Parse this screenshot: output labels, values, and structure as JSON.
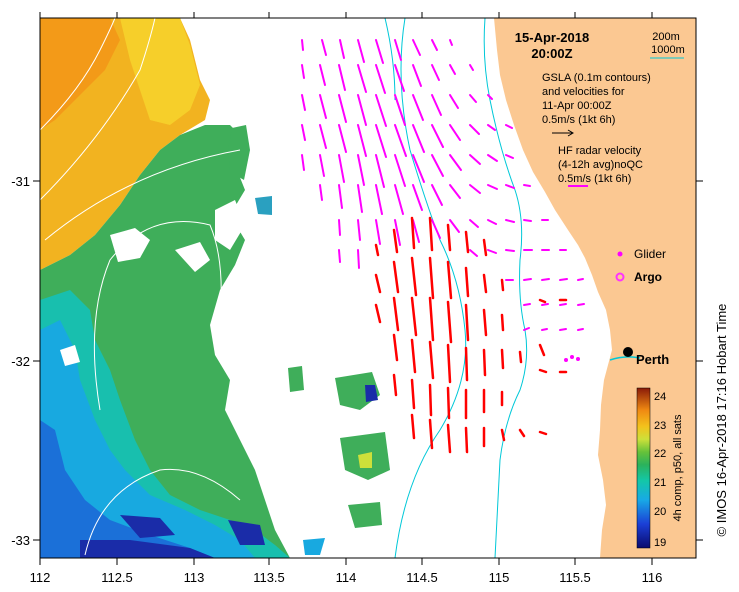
{
  "map": {
    "date_line": "15-Apr-2018",
    "time_line": "20:00Z",
    "depth_legend": [
      "200m",
      "1000m"
    ],
    "gsla_lines": [
      "GSLA (0.1m contours)",
      "and velocities for",
      "11-Apr 00:00Z",
      "0.5m/s (1kt 6h)"
    ],
    "hf_lines": [
      "HF radar velocity",
      "(4-12h avg)noQC",
      "0.5m/s (1kt 6h)"
    ],
    "glider_label": "Glider",
    "argo_label": "Argo",
    "city_label": "Perth",
    "colorbar_title": "4h comp, p50, all sats",
    "credit": "©  IMOS 16-Apr-2018 17:16 Hobart Time",
    "x_ticks": [
      "112",
      "112.5",
      "113",
      "113.5",
      "114",
      "114.5",
      "115",
      "115.5",
      "116"
    ],
    "y_ticks": [
      "-31",
      "-32",
      "-33"
    ],
    "colorbar_ticks": [
      "24",
      "23",
      "22",
      "21",
      "20",
      "19"
    ],
    "colors": {
      "land": "#fbc892",
      "gsla_arrow": "#ff00ff",
      "hf_arrow": "#ff0000",
      "isobath": "#00c8d8",
      "argo": "#ff33ff",
      "glider": "#ff00ff"
    }
  }
}
